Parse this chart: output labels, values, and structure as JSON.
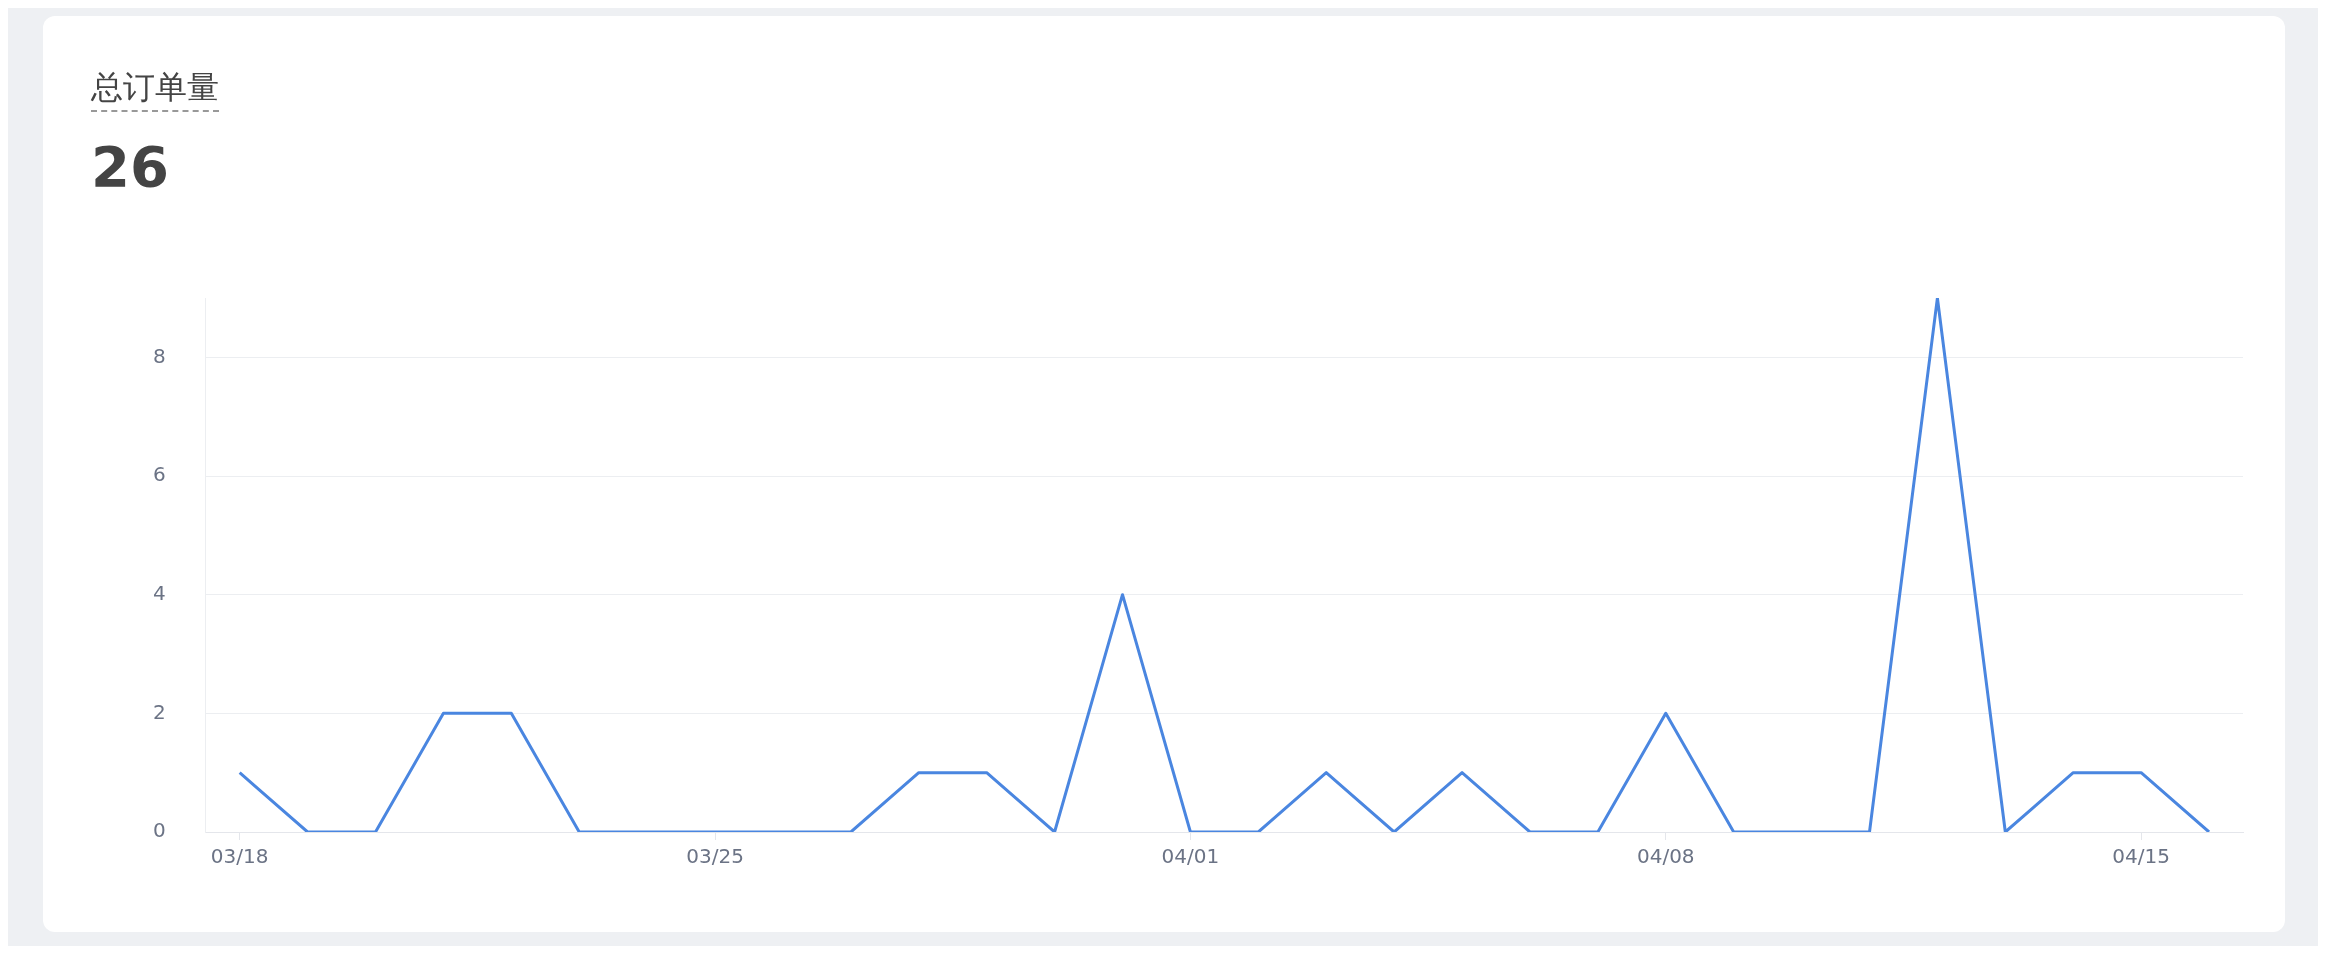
{
  "chart_data": {
    "type": "line",
    "title": "总订单量",
    "subtitle": "26",
    "categories": [
      "03/18",
      null,
      null,
      null,
      null,
      null,
      null,
      "03/25",
      null,
      null,
      null,
      null,
      null,
      null,
      "04/01",
      null,
      null,
      null,
      null,
      null,
      null,
      "04/08",
      null,
      null,
      null,
      null,
      null,
      null,
      "04/15",
      null
    ],
    "series": [
      {
        "color": "#4a86e0",
        "values": [
          1,
          0,
          0,
          2,
          2,
          0,
          0,
          0,
          0,
          0,
          1,
          1,
          0,
          4,
          0,
          0,
          1,
          0,
          1,
          0,
          0,
          2,
          0,
          0,
          0,
          9,
          0,
          1,
          1,
          0
        ]
      }
    ],
    "ylim": [
      0,
      9
    ],
    "yticks": [
      0,
      2,
      4,
      6,
      8
    ],
    "grid": "y",
    "legend": false,
    "marker": "none",
    "line_style": "solid"
  }
}
